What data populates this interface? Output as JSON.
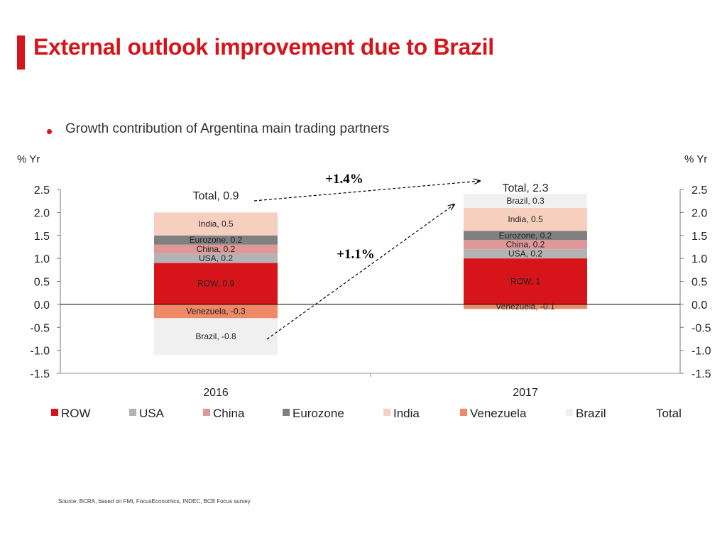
{
  "page": {
    "title": "External outlook improvement due to Brazil",
    "subtitle": "Growth contribution of Argentina main trading partners",
    "source": "Source: BCRA, based on FMI, FocusEconomics, INDEC, BCB Focus survey"
  },
  "chart_data": {
    "type": "bar",
    "stacked": true,
    "title": "",
    "ylabel_left": "% Yr",
    "ylabel_right": "% Yr",
    "ylim": [
      -1.5,
      2.5
    ],
    "yticks": [
      "2.5",
      "2.0",
      "1.5",
      "1.0",
      "0.5",
      "0.0",
      "-0.5",
      "-1.0",
      "-1.5"
    ],
    "categories": [
      "2016",
      "2017"
    ],
    "series": [
      {
        "name": "ROW",
        "color": "#d7141a",
        "values": [
          0.9,
          1.0
        ],
        "labels": [
          "ROW, 0.9",
          "ROW, 1"
        ]
      },
      {
        "name": "USA",
        "color": "#b3b3b3",
        "values": [
          0.2,
          0.2
        ],
        "labels": [
          "USA, 0.2",
          "USA, 0.2"
        ]
      },
      {
        "name": "China",
        "color": "#de9898",
        "values": [
          0.2,
          0.2
        ],
        "labels": [
          "China, 0.2",
          "China, 0.2"
        ]
      },
      {
        "name": "Eurozone",
        "color": "#808080",
        "values": [
          0.2,
          0.2
        ],
        "labels": [
          "Eurozone, 0.2",
          "Eurozone, 0.2"
        ]
      },
      {
        "name": "India",
        "color": "#f7cfbf",
        "values": [
          0.5,
          0.5
        ],
        "labels": [
          "India, 0.5",
          "India, 0.5"
        ]
      },
      {
        "name": "Venezuela",
        "color": "#ee8866",
        "values": [
          -0.3,
          -0.1
        ],
        "labels": [
          "Venezuela, -0.3",
          "Venezuela, -0.1"
        ]
      },
      {
        "name": "Brazil",
        "color": "#f0f0f0",
        "values": [
          -0.8,
          0.3
        ],
        "labels": [
          "Brazil, -0.8",
          "Brazil, 0.3"
        ]
      }
    ],
    "total": {
      "name": "Total",
      "values": [
        0.9,
        2.3
      ],
      "labels": [
        "Total, 0.9",
        "Total, 2.3"
      ]
    },
    "annotations": [
      "+1.4%",
      "+1.1%"
    ],
    "legend_position": "bottom",
    "grid": false
  }
}
